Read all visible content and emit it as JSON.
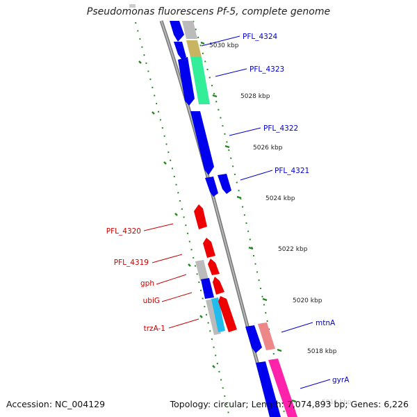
{
  "title": "Pseudomonas fluorescens Pf-5, complete genome",
  "footer": {
    "accession": "Accession: NC_004129",
    "summary": "Topology: circular; Length: 7,074,893 bp; Genes: 6,226"
  },
  "colors": {
    "forward_label": "#0000cc",
    "reverse_label": "#cc0000",
    "blue_gene": "#0000ee",
    "red_gene": "#ee0000",
    "tick": "#228822",
    "backbone": "#888888"
  },
  "ticks": [
    {
      "label": "5030 kbp"
    },
    {
      "label": "5028 kbp"
    },
    {
      "label": "5026 kbp"
    },
    {
      "label": "5024 kbp"
    },
    {
      "label": "5022 kbp"
    },
    {
      "label": "5020 kbp"
    },
    {
      "label": "5018 kbp"
    },
    {
      "label": "5016 kbp"
    }
  ],
  "forward_genes": [
    {
      "label": "PFL_4324"
    },
    {
      "label": "PFL_4323"
    },
    {
      "label": "PFL_4322"
    },
    {
      "label": "PFL_4321"
    },
    {
      "label": "mtnA"
    },
    {
      "label": "gyrA"
    }
  ],
  "reverse_genes": [
    {
      "label": "PFL_4320"
    },
    {
      "label": "PFL_4319"
    },
    {
      "label": "gph"
    },
    {
      "label": "ubiG"
    },
    {
      "label": "trzA-1"
    }
  ]
}
